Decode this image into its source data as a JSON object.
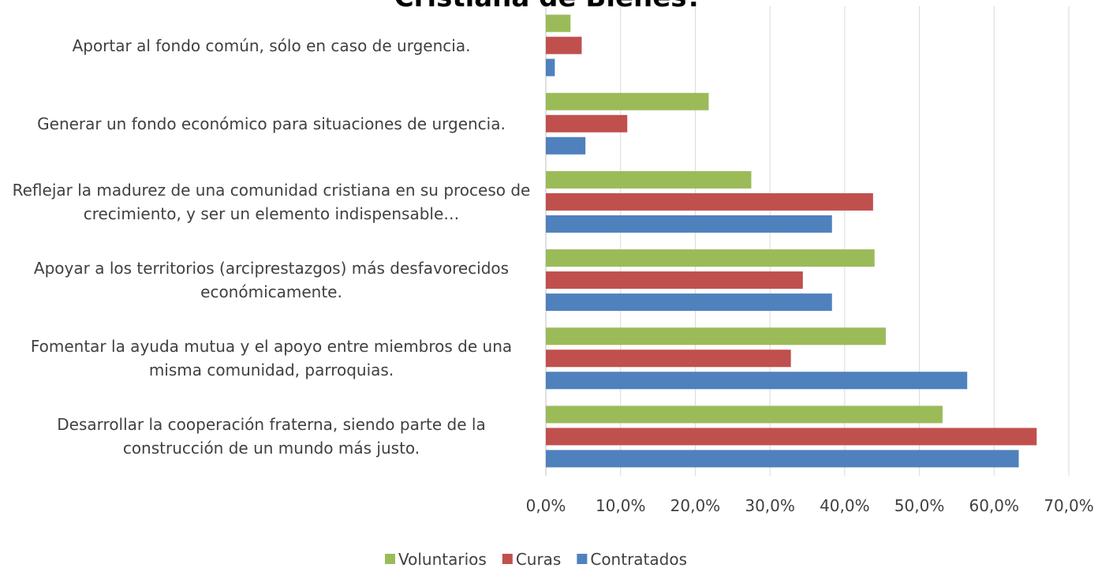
{
  "chart_data": {
    "type": "bar",
    "orientation": "horizontal",
    "title": "Cristiana de Bienes?",
    "categories": [
      "Aportar al fondo común, sólo en caso de urgencia.",
      "Generar un fondo económico para situaciones de urgencia.",
      "Reflejar la madurez de una comunidad cristiana en su proceso de crecimiento, y ser un elemento indispensable…",
      "Apoyar a los territorios (arciprestazgos) más desfavorecidos económicamente.",
      "Fomentar la ayuda mutua y el apoyo entre miembros de una misma comunidad, parroquias.",
      "Desarrollar la cooperación fraterna, siendo parte de la construcción de un mundo más justo."
    ],
    "series": [
      {
        "name": "Voluntarios",
        "color": "#9bbb59",
        "values": [
          3.3,
          21.8,
          27.5,
          44.0,
          45.5,
          53.1
        ]
      },
      {
        "name": "Curas",
        "color": "#c0504d",
        "values": [
          4.8,
          10.9,
          43.8,
          34.4,
          32.8,
          65.7
        ]
      },
      {
        "name": "Contratados",
        "color": "#4f81bd",
        "values": [
          1.2,
          5.3,
          38.3,
          38.3,
          56.4,
          63.3
        ]
      }
    ],
    "xlim": [
      0,
      70
    ],
    "xticks": [
      {
        "value": 0,
        "label": "0,0%"
      },
      {
        "value": 10,
        "label": "10,0%"
      },
      {
        "value": 20,
        "label": "20,0%"
      },
      {
        "value": 30,
        "label": "30,0%"
      },
      {
        "value": 40,
        "label": "40,0%"
      },
      {
        "value": 50,
        "label": "50,0%"
      },
      {
        "value": 60,
        "label": "60,0%"
      },
      {
        "value": 70,
        "label": "70,0%"
      }
    ],
    "grid": true,
    "legend": "bottom"
  }
}
